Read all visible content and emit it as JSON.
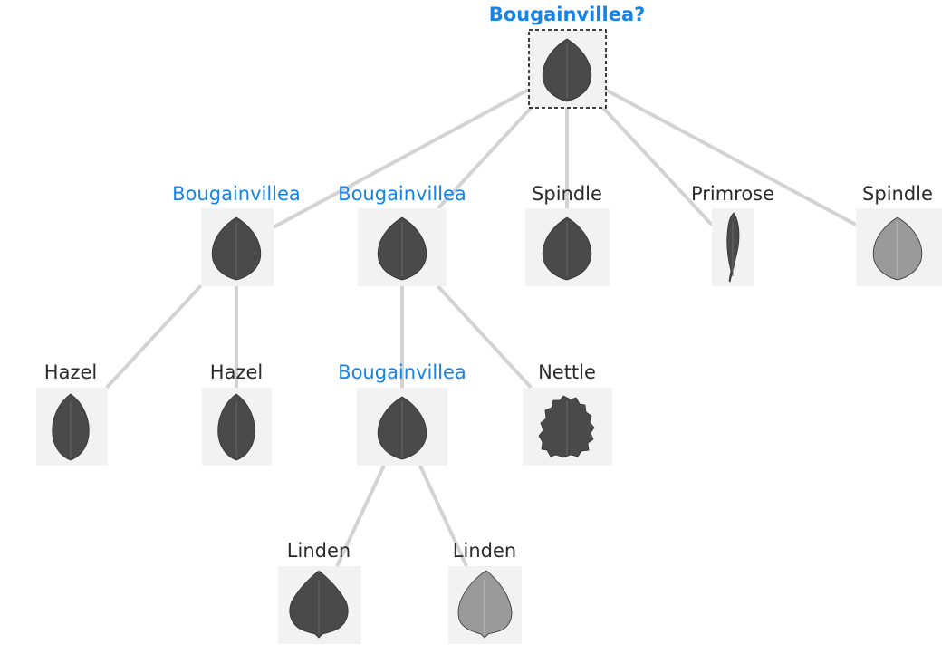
{
  "colors": {
    "highlight": "#1584e6",
    "normal": "#2b2b2b",
    "edge": "#d3d3d3",
    "tile": "#f2f2f2",
    "leaf_dark": "#4a4a4a",
    "leaf_light": "#9a9a9a"
  },
  "nodes": [
    {
      "id": "root",
      "label": "Bougainvillea?",
      "highlight": true,
      "query": true,
      "leaf": "ovate",
      "parent": null
    },
    {
      "id": "n1",
      "label": "Bougainvillea",
      "highlight": true,
      "leaf": "ovate",
      "parent": "root"
    },
    {
      "id": "n2",
      "label": "Bougainvillea",
      "highlight": true,
      "leaf": "ovate",
      "parent": "root"
    },
    {
      "id": "n3",
      "label": "Spindle",
      "highlight": false,
      "leaf": "ovate",
      "parent": "root"
    },
    {
      "id": "n4",
      "label": "Primrose",
      "highlight": false,
      "leaf": "narrow",
      "parent": "root"
    },
    {
      "id": "n5",
      "label": "Spindle",
      "highlight": false,
      "leaf": "ovate-light",
      "parent": "root"
    },
    {
      "id": "n6",
      "label": "Hazel",
      "highlight": false,
      "leaf": "elliptic",
      "parent": "n1"
    },
    {
      "id": "n7",
      "label": "Hazel",
      "highlight": false,
      "leaf": "elliptic",
      "parent": "n1"
    },
    {
      "id": "n8",
      "label": "Bougainvillea",
      "highlight": true,
      "leaf": "ovate",
      "parent": "n2"
    },
    {
      "id": "n9",
      "label": "Nettle",
      "highlight": false,
      "leaf": "serrate",
      "parent": "n2"
    },
    {
      "id": "n10",
      "label": "Linden",
      "highlight": false,
      "leaf": "cordate",
      "parent": "n8"
    },
    {
      "id": "n11",
      "label": "Linden",
      "highlight": false,
      "leaf": "cordate-light",
      "parent": "n8"
    }
  ]
}
